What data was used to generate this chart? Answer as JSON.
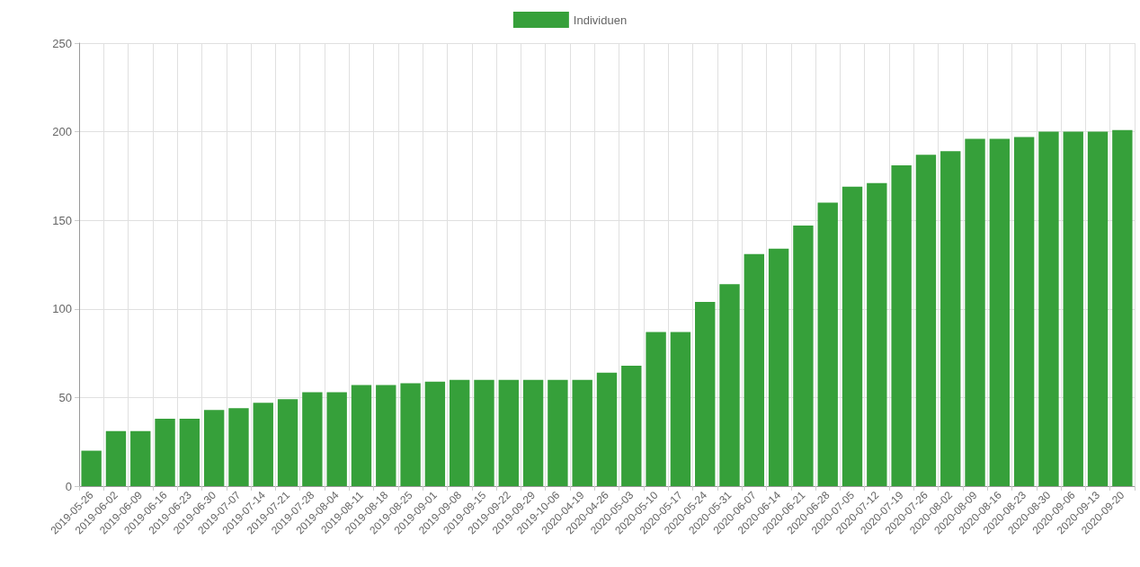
{
  "chart_data": {
    "type": "bar",
    "categories": [
      "2019-05-26",
      "2019-06-02",
      "2019-06-09",
      "2019-06-16",
      "2019-06-23",
      "2019-06-30",
      "2019-07-07",
      "2019-07-14",
      "2019-07-21",
      "2019-07-28",
      "2019-08-04",
      "2019-08-11",
      "2019-08-18",
      "2019-08-25",
      "2019-09-01",
      "2019-09-08",
      "2019-09-15",
      "2019-09-22",
      "2019-09-29",
      "2019-10-06",
      "2020-04-19",
      "2020-04-26",
      "2020-05-03",
      "2020-05-10",
      "2020-05-17",
      "2020-05-24",
      "2020-05-31",
      "2020-06-07",
      "2020-06-14",
      "2020-06-21",
      "2020-06-28",
      "2020-07-05",
      "2020-07-12",
      "2020-07-19",
      "2020-07-26",
      "2020-08-02",
      "2020-08-09",
      "2020-08-16",
      "2020-08-23",
      "2020-08-30",
      "2020-09-06",
      "2020-09-13",
      "2020-09-20"
    ],
    "series": [
      {
        "name": "Individuen",
        "color": "#36a03a",
        "values": [
          20,
          31,
          31,
          38,
          38,
          43,
          44,
          47,
          49,
          53,
          53,
          57,
          57,
          58,
          59,
          60,
          60,
          60,
          60,
          60,
          60,
          64,
          68,
          87,
          87,
          104,
          114,
          131,
          134,
          147,
          160,
          169,
          171,
          181,
          187,
          189,
          196,
          196,
          197,
          200,
          200,
          200,
          201
        ]
      }
    ],
    "ylim": [
      0,
      250
    ],
    "yticks": [
      0,
      50,
      100,
      150,
      200,
      250
    ],
    "grid": true,
    "legend": "top"
  }
}
